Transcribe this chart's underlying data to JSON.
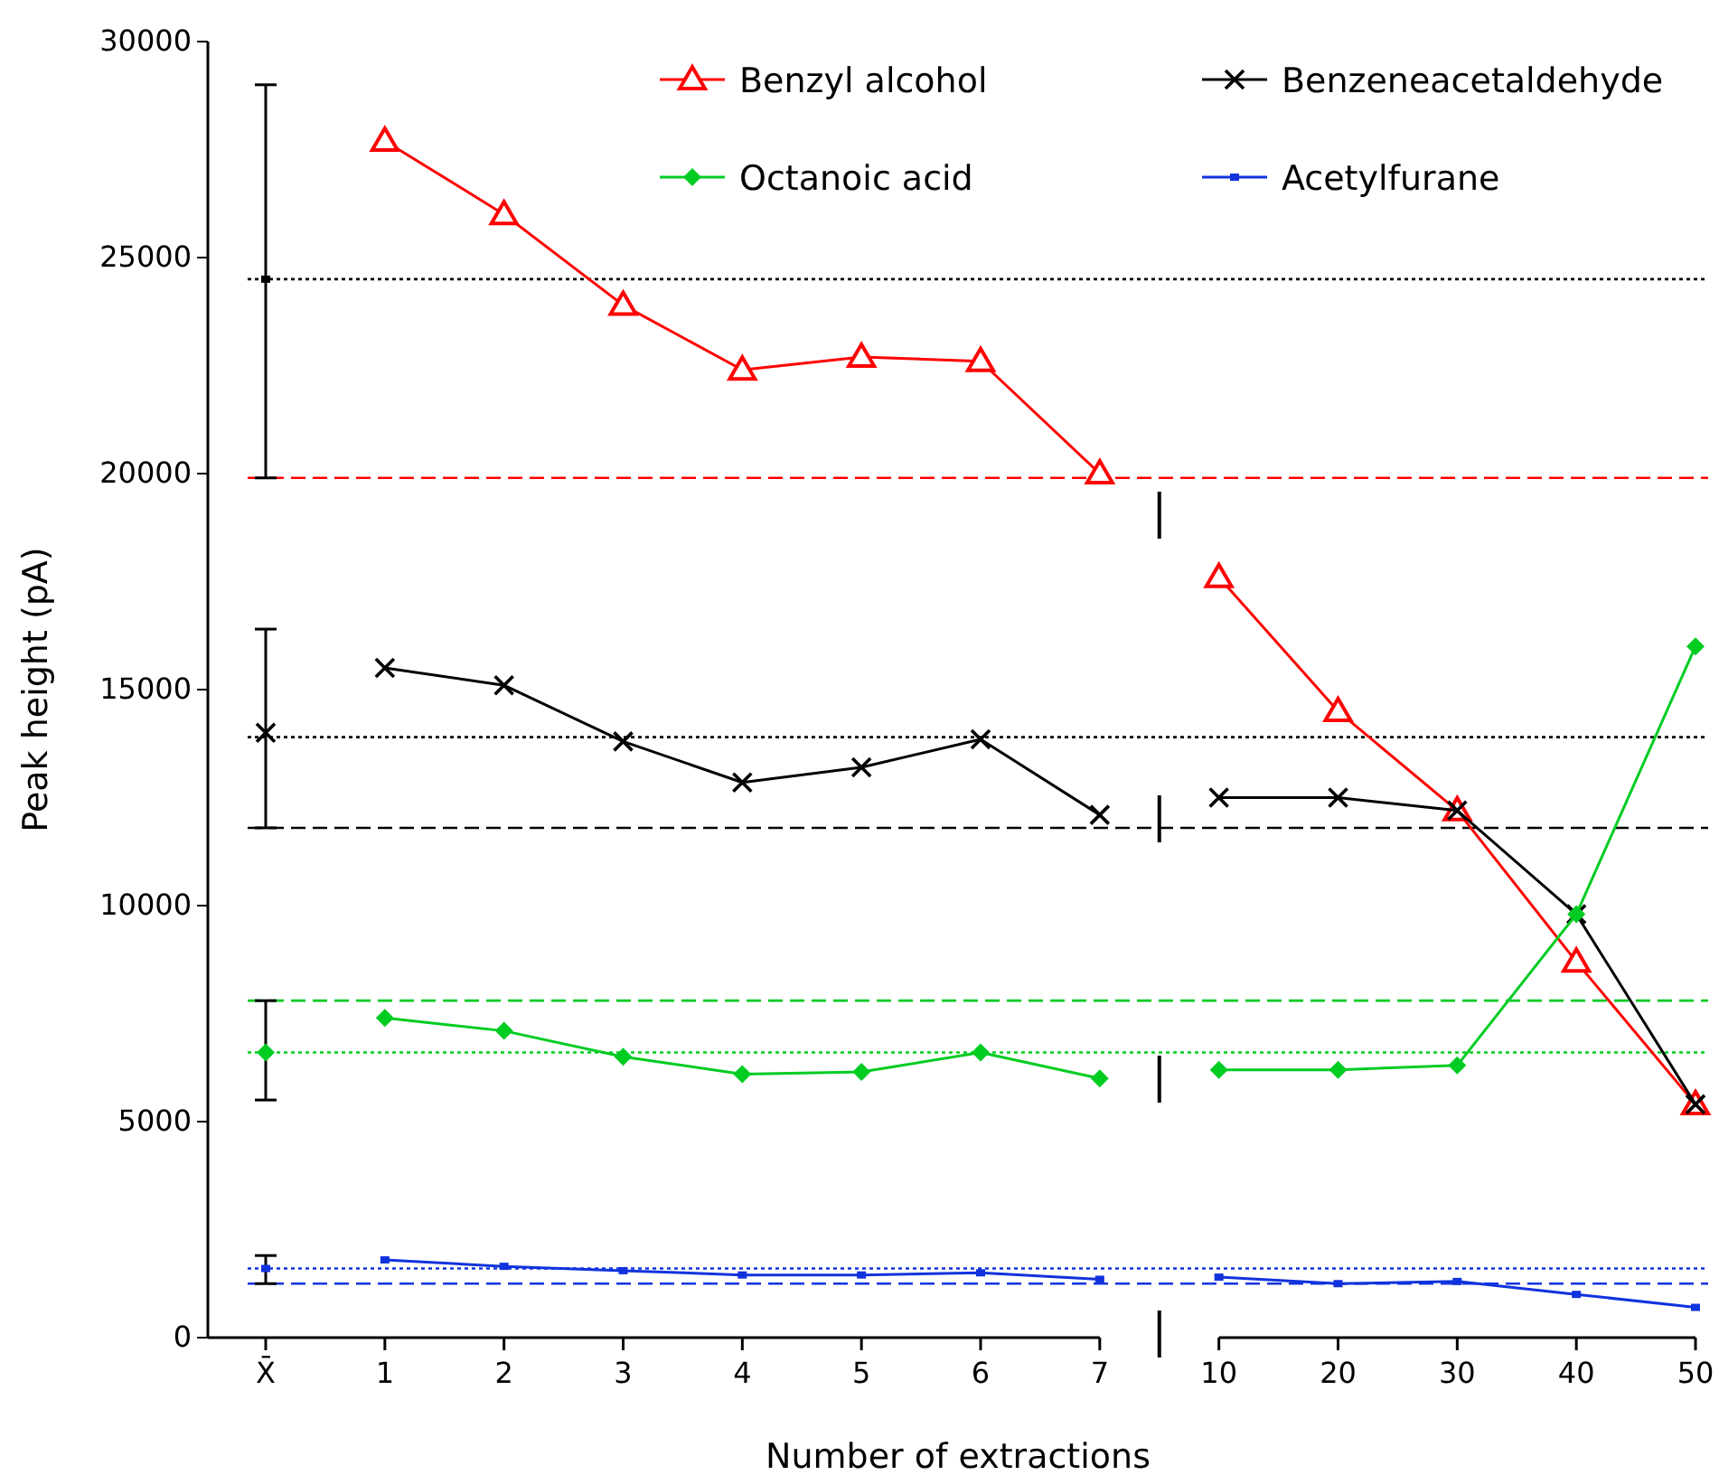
{
  "chart_data": {
    "type": "line",
    "xlabel": "Number of extractions",
    "ylabel": "Peak height (pA)",
    "categories": [
      "X̄",
      "1",
      "2",
      "3",
      "4",
      "5",
      "6",
      "7",
      "10",
      "20",
      "30",
      "40",
      "50"
    ],
    "ylim": [
      0,
      30000
    ],
    "yticks": [
      0,
      5000,
      10000,
      15000,
      20000,
      25000,
      30000
    ],
    "grid": false,
    "legend": "top right",
    "series": [
      {
        "name": "Benzyl alcohol",
        "color": "#ff0000",
        "marker": "triangle",
        "values": [
          null,
          27700,
          26000,
          23900,
          22400,
          22700,
          22600,
          20000,
          17600,
          14500,
          12200,
          8700,
          5400
        ]
      },
      {
        "name": "Benzeneacetaldehyde",
        "color": "#000000",
        "marker": "cross",
        "values": [
          null,
          15500,
          15100,
          13800,
          12850,
          13200,
          13850,
          12100,
          12500,
          12500,
          12200,
          9800,
          5400
        ]
      },
      {
        "name": "Octanoic acid",
        "color": "#00cc22",
        "marker": "diamond",
        "values": [
          null,
          7400,
          7100,
          6500,
          6100,
          6150,
          6600,
          6000,
          6200,
          6200,
          6300,
          9800,
          16000
        ]
      },
      {
        "name": "Acetylfurane",
        "color": "#1133dd",
        "marker": "square",
        "values": [
          null,
          1800,
          1650,
          1550,
          1450,
          1450,
          1500,
          1350,
          1400,
          1250,
          1300,
          1000,
          700
        ]
      },
      {
        "type": "scatter",
        "color": "#000000",
        "marker": "square",
        "values": [
          24500,
          null,
          null,
          null,
          null,
          null,
          null,
          null,
          null,
          null,
          null,
          null,
          null
        ],
        "errors": [
          [
            19900,
            29000
          ],
          null,
          null,
          null,
          null,
          null,
          null,
          null,
          null,
          null,
          null,
          null,
          null
        ]
      },
      {
        "type": "scatter",
        "color": "#000000",
        "marker": "cross",
        "values": [
          14000,
          null,
          null,
          null,
          null,
          null,
          null,
          null,
          null,
          null,
          null,
          null,
          null
        ],
        "errors": [
          [
            11800,
            16400
          ],
          null,
          null,
          null,
          null,
          null,
          null,
          null,
          null,
          null,
          null,
          null,
          null
        ]
      },
      {
        "type": "scatter",
        "color": "#00cc22",
        "marker": "diamond",
        "values": [
          6600,
          null,
          null,
          null,
          null,
          null,
          null,
          null,
          null,
          null,
          null,
          null,
          null
        ],
        "errors": [
          [
            5500,
            7800
          ],
          null,
          null,
          null,
          null,
          null,
          null,
          null,
          null,
          null,
          null,
          null,
          null
        ]
      },
      {
        "type": "scatter",
        "color": "#1133dd",
        "marker": "square",
        "values": [
          1600,
          null,
          null,
          null,
          null,
          null,
          null,
          null,
          null,
          null,
          null,
          null,
          null
        ],
        "errors": [
          [
            1250,
            1900
          ],
          null,
          null,
          null,
          null,
          null,
          null,
          null,
          null,
          null,
          null,
          null,
          null
        ]
      }
    ],
    "ref_lines": [
      {
        "axis": "y",
        "value": 24500,
        "color": "#000000",
        "line_style": "dotted"
      },
      {
        "axis": "y",
        "value": 19900,
        "color": "#ff0000",
        "line_style": "dashed"
      },
      {
        "axis": "y",
        "value": 13900,
        "color": "#000000",
        "line_style": "dotted"
      },
      {
        "axis": "y",
        "value": 11800,
        "color": "#000000",
        "line_style": "dashed"
      },
      {
        "axis": "y",
        "value": 7800,
        "color": "#00cc22",
        "line_style": "dashed"
      },
      {
        "axis": "y",
        "value": 6600,
        "color": "#00cc22",
        "line_style": "dotted"
      },
      {
        "axis": "y",
        "value": 1600,
        "color": "#1133dd",
        "line_style": "dotted"
      },
      {
        "axis": "y",
        "value": 1250,
        "color": "#1133dd",
        "line_style": "dashed"
      }
    ]
  }
}
